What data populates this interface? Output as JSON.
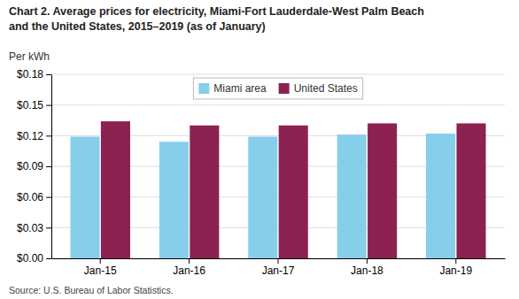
{
  "chart_data": {
    "type": "bar",
    "title": "Chart 2. Average prices for electricity, Miami-Fort Lauderdale-West Palm Beach",
    "subtitle": "and the United States, 2015–2019 (as of January)",
    "ylabel": "Per kWh",
    "annotations": [
      "Source: U.S. Bureau of Labor Statistics."
    ],
    "categories": [
      "Jan-15",
      "Jan-16",
      "Jan-17",
      "Jan-18",
      "Jan-19"
    ],
    "series": [
      {
        "name": "Miami area",
        "color": "#87CEEB",
        "values": [
          0.119,
          0.114,
          0.119,
          0.121,
          0.122
        ]
      },
      {
        "name": "United States",
        "color": "#8B2252",
        "values": [
          0.134,
          0.13,
          0.13,
          0.132,
          0.132
        ]
      }
    ],
    "ylim": [
      0.0,
      0.18
    ],
    "yticks": [
      {
        "value": 0.0,
        "label": "$0.00"
      },
      {
        "value": 0.03,
        "label": "$0.03"
      },
      {
        "value": 0.06,
        "label": "$0.06"
      },
      {
        "value": 0.09,
        "label": "$0.09"
      },
      {
        "value": 0.12,
        "label": "$0.12"
      },
      {
        "value": 0.15,
        "label": "$0.15"
      },
      {
        "value": 0.18,
        "label": "$0.18"
      }
    ],
    "grid": true,
    "legend": "top"
  }
}
